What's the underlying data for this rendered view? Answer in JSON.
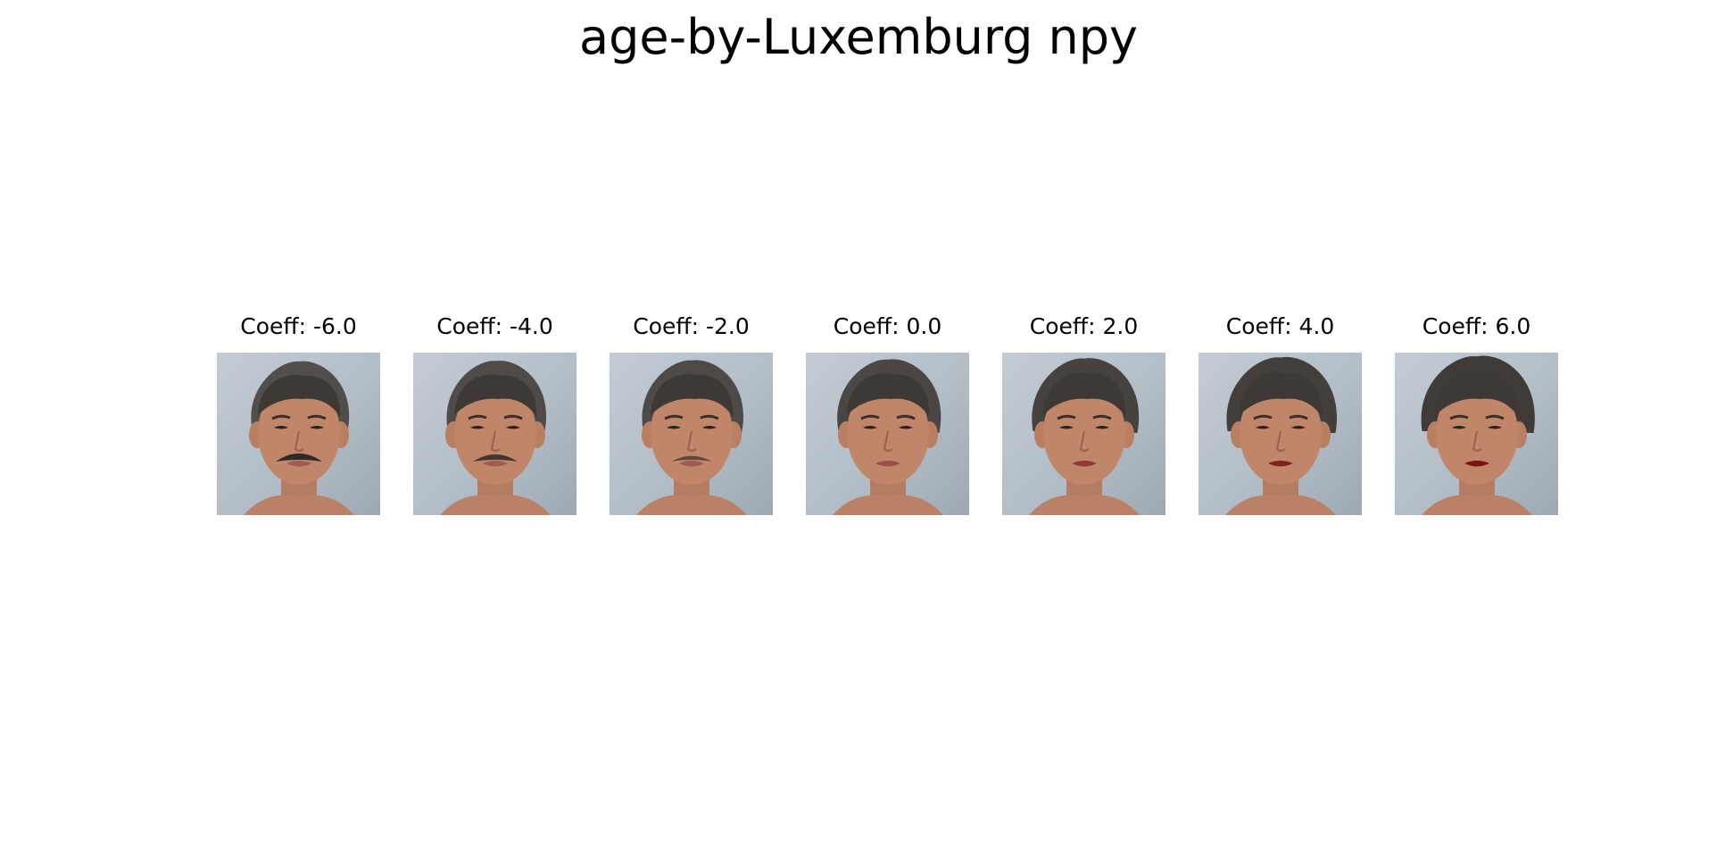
{
  "title": "age-by-Luxemburg npy",
  "palette": {
    "background": "#ffffff",
    "photo_background": "#b8c2cb",
    "skin": "#c0866a",
    "hair": "#3e3935",
    "lips_neutral": "#a05a52",
    "lips_red": "#7a1414",
    "mustache": "#2f2b29"
  },
  "panels": [
    {
      "label": "Coeff: -6.0",
      "coeff": -6.0,
      "image": "face-portrait",
      "features": {
        "mustache": 1.0,
        "lip_red": 0.0,
        "hair_volume": 0.0
      }
    },
    {
      "label": "Coeff: -4.0",
      "coeff": -4.0,
      "image": "face-portrait",
      "features": {
        "mustache": 0.8,
        "lip_red": 0.0,
        "hair_volume": 0.1
      }
    },
    {
      "label": "Coeff: -2.0",
      "coeff": -2.0,
      "image": "face-portrait",
      "features": {
        "mustache": 0.45,
        "lip_red": 0.0,
        "hair_volume": 0.2
      }
    },
    {
      "label": "Coeff: 0.0",
      "coeff": 0.0,
      "image": "face-portrait",
      "features": {
        "mustache": 0.0,
        "lip_red": 0.15,
        "hair_volume": 0.35
      }
    },
    {
      "label": "Coeff: 2.0",
      "coeff": 2.0,
      "image": "face-portrait",
      "features": {
        "mustache": 0.0,
        "lip_red": 0.45,
        "hair_volume": 0.55
      }
    },
    {
      "label": "Coeff: 4.0",
      "coeff": 4.0,
      "image": "face-portrait",
      "features": {
        "mustache": 0.0,
        "lip_red": 0.8,
        "hair_volume": 0.75
      }
    },
    {
      "label": "Coeff: 6.0",
      "coeff": 6.0,
      "image": "face-portrait",
      "features": {
        "mustache": 0.0,
        "lip_red": 1.0,
        "hair_volume": 0.95
      }
    }
  ]
}
